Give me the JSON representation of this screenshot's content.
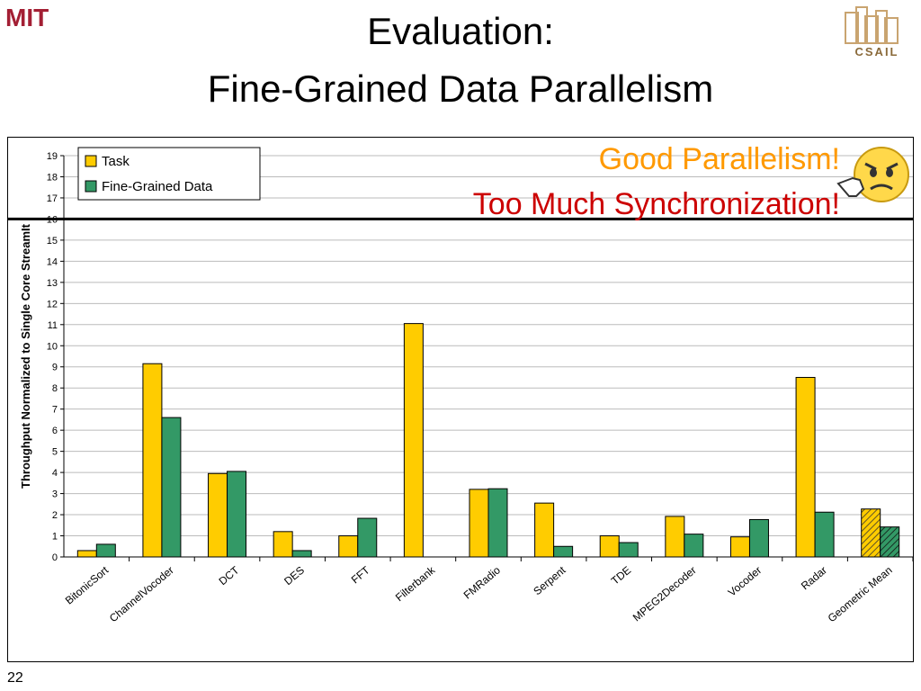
{
  "slide": {
    "title_line1": "Evaluation:",
    "title_line2": "Fine-Grained Data Parallelism",
    "number": "22",
    "logo_left": "MIT",
    "logo_right": "CSAIL",
    "annotation_good": "Good Parallelism!",
    "annotation_bad": "Too Much Synchronization!"
  },
  "colors": {
    "task": "#FFCC00",
    "fine_grained": "#339966",
    "good_text": "#FF9900",
    "bad_text": "#CC0000",
    "mit_red": "#A31F34"
  },
  "icons": {
    "emoji": "thumbs-down-smiley-icon"
  },
  "chart_data": {
    "type": "bar",
    "ylabel": "Throughput Normalized to Single Core StreamIt",
    "xlabel": "",
    "ylim": [
      0,
      19
    ],
    "yticks": [
      0,
      1,
      2,
      3,
      4,
      5,
      6,
      7,
      8,
      9,
      10,
      11,
      12,
      13,
      14,
      15,
      16,
      17,
      18,
      19
    ],
    "reference_line": 16,
    "legend_position": "top-left",
    "grid": true,
    "categories": [
      "BitonicSort",
      "ChannelVocoder",
      "DCT",
      "DES",
      "FFT",
      "Filterbank",
      "FMRadio",
      "Serpent",
      "TDE",
      "MPEG2Decoder",
      "Vocoder",
      "Radar",
      "Geometric Mean"
    ],
    "series": [
      {
        "name": "Task",
        "values": [
          0.3,
          9.15,
          3.95,
          1.2,
          1.0,
          11.05,
          3.2,
          2.55,
          1.0,
          1.92,
          0.95,
          8.5,
          2.27
        ]
      },
      {
        "name": "Fine-Grained Data",
        "values": [
          0.6,
          6.6,
          4.05,
          0.3,
          1.83,
          0,
          3.23,
          0.5,
          0.68,
          1.08,
          1.77,
          2.12,
          1.42
        ]
      }
    ],
    "hatched_categories": [
      "Geometric Mean"
    ]
  }
}
